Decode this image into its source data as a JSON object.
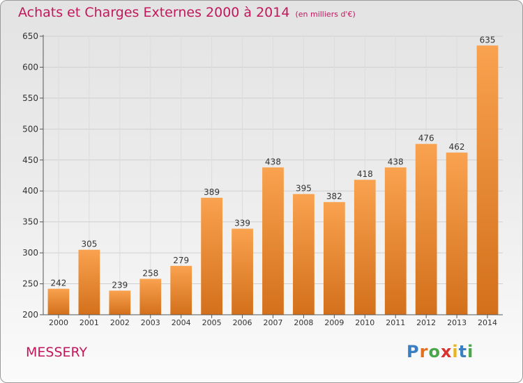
{
  "title": "Achats et Charges Externes 2000 à 2014",
  "subtitle": "(en milliers d'€)",
  "town": "MESSERY",
  "logo": {
    "text": "Proxiti",
    "letter_colors": [
      "#3a7fc1",
      "#e2701f",
      "#4aa64a",
      "#d9322f",
      "#e8b51c",
      "#3a7fc1",
      "#4aa64a"
    ]
  },
  "chart_data": {
    "type": "bar",
    "title": "Achats et Charges Externes 2000 à 2014",
    "subtitle": "(en milliers d'€)",
    "categories": [
      "2000",
      "2001",
      "2002",
      "2003",
      "2004",
      "2005",
      "2006",
      "2007",
      "2008",
      "2009",
      "2010",
      "2011",
      "2012",
      "2013",
      "2014"
    ],
    "values": [
      242,
      305,
      239,
      258,
      279,
      389,
      339,
      438,
      395,
      382,
      418,
      438,
      476,
      462,
      635
    ],
    "ylim": [
      200,
      650
    ],
    "yticks": [
      200,
      250,
      300,
      350,
      400,
      450,
      500,
      550,
      600,
      650
    ],
    "grid": true,
    "bar_color": "#f0902d",
    "xlabel": "",
    "ylabel": ""
  }
}
